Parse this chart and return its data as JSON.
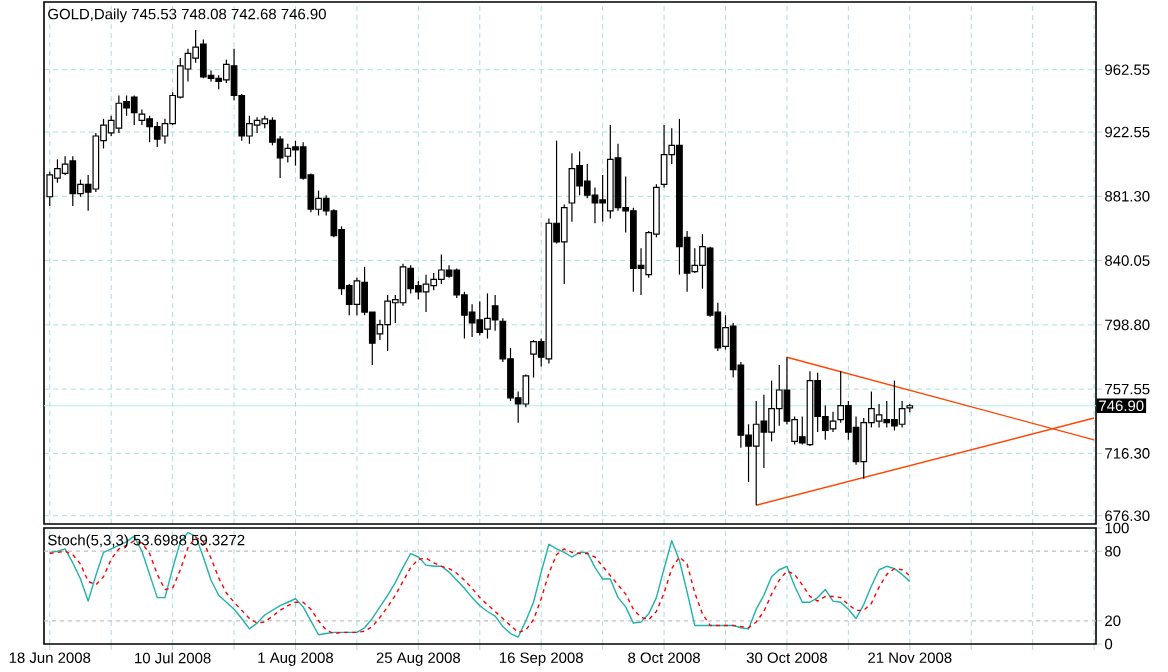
{
  "chart_data": [
    {
      "type": "candlestick",
      "title": "GOLD,Daily  745.53 748.08 742.68 746.90",
      "categories": [
        null,
        null,
        null,
        null,
        null,
        null,
        null,
        null,
        null,
        null,
        null,
        null,
        null,
        null,
        null,
        null,
        null,
        null,
        null,
        null,
        null,
        null,
        null,
        null,
        null,
        null,
        null,
        null,
        null,
        null,
        null,
        null,
        null,
        null,
        null,
        null,
        null,
        null,
        null,
        null,
        null,
        null,
        null,
        null,
        null,
        null,
        null,
        null,
        null,
        null,
        null,
        null,
        null,
        null,
        null,
        null,
        null,
        null,
        null,
        null,
        null,
        null,
        null,
        null,
        null,
        null,
        null,
        null,
        null,
        null,
        null,
        null,
        null,
        null,
        null,
        null,
        null,
        null,
        null,
        null,
        null,
        null,
        null,
        null,
        null,
        null,
        null,
        null,
        null,
        null,
        null,
        null,
        null,
        null,
        null,
        null,
        null,
        null,
        null,
        null,
        null,
        null,
        null,
        null,
        null,
        null,
        null,
        null,
        null,
        null,
        null,
        null,
        null,
        null,
        null,
        null,
        null,
        null,
        null,
        null,
        null,
        null,
        null,
        null,
        null,
        null,
        null,
        null,
        null,
        null,
        null,
        null,
        null,
        null,
        null,
        null,
        null
      ],
      "ohlc": [
        [
          881,
          897,
          875,
          895
        ],
        [
          893,
          905,
          890,
          899
        ],
        [
          896,
          907,
          895,
          902
        ],
        [
          904,
          907,
          875,
          883
        ],
        [
          883,
          892,
          881,
          889
        ],
        [
          889,
          895,
          872,
          884
        ],
        [
          886,
          922,
          884,
          920
        ],
        [
          917,
          931,
          912,
          927
        ],
        [
          922,
          933,
          920,
          930
        ],
        [
          925,
          946,
          922,
          941
        ],
        [
          942,
          946,
          933,
          938
        ],
        [
          945,
          946,
          927,
          935
        ],
        [
          930,
          937,
          927,
          934
        ],
        [
          931,
          933,
          916,
          926
        ],
        [
          926,
          929,
          913,
          918
        ],
        [
          920,
          931,
          915,
          928
        ],
        [
          928,
          948,
          927,
          946
        ],
        [
          945,
          970,
          944,
          965
        ],
        [
          963,
          976,
          955,
          973
        ],
        [
          970,
          988,
          967,
          977
        ],
        [
          979,
          982,
          957,
          958
        ],
        [
          959,
          962,
          955,
          957
        ],
        [
          957,
          959,
          950,
          955
        ],
        [
          956,
          969,
          954,
          966
        ],
        [
          965,
          976,
          943,
          946
        ],
        [
          946,
          947,
          917,
          920
        ],
        [
          920,
          933,
          915,
          928
        ],
        [
          927,
          932,
          922,
          930
        ],
        [
          928,
          933,
          925,
          931
        ],
        [
          930,
          932,
          914,
          916
        ],
        [
          918,
          920,
          893,
          906
        ],
        [
          907,
          915,
          903,
          912
        ],
        [
          913,
          917,
          901,
          911
        ],
        [
          913,
          916,
          892,
          893
        ],
        [
          895,
          896,
          871,
          873
        ],
        [
          873,
          885,
          869,
          880
        ],
        [
          880,
          882,
          869,
          872
        ],
        [
          872,
          873,
          855,
          856
        ],
        [
          860,
          862,
          818,
          822
        ],
        [
          824,
          825,
          805,
          812
        ],
        [
          812,
          829,
          805,
          827
        ],
        [
          826,
          836,
          805,
          807
        ],
        [
          807,
          807,
          773,
          787
        ],
        [
          793,
          802,
          789,
          799
        ],
        [
          799,
          818,
          782,
          814
        ],
        [
          813,
          818,
          800,
          815
        ],
        [
          813,
          838,
          811,
          836
        ],
        [
          835,
          837,
          819,
          822
        ],
        [
          824,
          827,
          815,
          820
        ],
        [
          820,
          831,
          807,
          825
        ],
        [
          824,
          832,
          821,
          828
        ],
        [
          828,
          844,
          825,
          834
        ],
        [
          834,
          837,
          829,
          830
        ],
        [
          834,
          835,
          816,
          818
        ],
        [
          818,
          820,
          790,
          805
        ],
        [
          807,
          812,
          791,
          800
        ],
        [
          802,
          814,
          792,
          794
        ],
        [
          796,
          819,
          790,
          803
        ],
        [
          811,
          818,
          795,
          802
        ],
        [
          801,
          803,
          775,
          777
        ],
        [
          777,
          784,
          750,
          752
        ],
        [
          752,
          756,
          736,
          748
        ],
        [
          748,
          767,
          746,
          766
        ],
        [
          780,
          789,
          765,
          788
        ],
        [
          788,
          790,
          772,
          778
        ],
        [
          777,
          867,
          774,
          864
        ],
        [
          864,
          917,
          851,
          852
        ],
        [
          852,
          876,
          825,
          874
        ],
        [
          877,
          909,
          865,
          899
        ],
        [
          901,
          910,
          882,
          888
        ],
        [
          891,
          902,
          880,
          882
        ],
        [
          882,
          887,
          864,
          877
        ],
        [
          879,
          895,
          865,
          877
        ],
        [
          872,
          927,
          867,
          905
        ],
        [
          906,
          915,
          872,
          874
        ],
        [
          874,
          894,
          858,
          872
        ],
        [
          872,
          874,
          820,
          835
        ],
        [
          837,
          848,
          818,
          835
        ],
        [
          831,
          859,
          829,
          858
        ],
        [
          857,
          889,
          855,
          887
        ],
        [
          889,
          927,
          887,
          908
        ],
        [
          908,
          925,
          902,
          914
        ],
        [
          914,
          931,
          831,
          849
        ],
        [
          855,
          859,
          820,
          832
        ],
        [
          833,
          848,
          832,
          837
        ],
        [
          837,
          857,
          822,
          849
        ],
        [
          848,
          849,
          804,
          805
        ],
        [
          807,
          813,
          782,
          784
        ],
        [
          785,
          805,
          783,
          797
        ],
        [
          798,
          800,
          765,
          770
        ],
        [
          773,
          775,
          720,
          728
        ],
        [
          728,
          735,
          698,
          721
        ],
        [
          721,
          750,
          683,
          735
        ],
        [
          737,
          754,
          707,
          730
        ],
        [
          730,
          763,
          724,
          745
        ],
        [
          745,
          773,
          734,
          757
        ],
        [
          757,
          778,
          735,
          737
        ],
        [
          724,
          740,
          722,
          738
        ],
        [
          727,
          740,
          722,
          723
        ],
        [
          722,
          769,
          721,
          763
        ],
        [
          763,
          768,
          730,
          740
        ],
        [
          740,
          747,
          725,
          731
        ],
        [
          732,
          743,
          730,
          737
        ],
        [
          738,
          769,
          736,
          747
        ],
        [
          747,
          750,
          725,
          730
        ],
        [
          733,
          740,
          709,
          711
        ],
        [
          711,
          739,
          700,
          736
        ],
        [
          736,
          756,
          733,
          745
        ],
        [
          737,
          748,
          733,
          741
        ],
        [
          738,
          750,
          733,
          736
        ],
        [
          738,
          763,
          731,
          734
        ],
        [
          735,
          750,
          733,
          745
        ],
        [
          745.53,
          748.08,
          742.68,
          746.9
        ],
        null,
        null,
        null,
        null,
        null,
        null,
        null,
        null,
        null,
        null,
        null,
        null,
        null,
        null,
        null,
        null,
        null,
        null,
        null,
        null,
        null,
        null,
        null,
        null
      ],
      "color": "#000000",
      "series": [
        {
          "type": "line",
          "color": "#ff4500",
          "line_style": "solid",
          "values": [
            null,
            null,
            null,
            null,
            null,
            null,
            null,
            null,
            null,
            null,
            null,
            null,
            null,
            null,
            null,
            null,
            null,
            null,
            null,
            null,
            null,
            null,
            null,
            null,
            null,
            null,
            null,
            null,
            null,
            null,
            null,
            null,
            null,
            null,
            null,
            null,
            null,
            null,
            null,
            null,
            null,
            null,
            null,
            null,
            null,
            null,
            null,
            null,
            null,
            null,
            null,
            null,
            null,
            null,
            null,
            null,
            null,
            null,
            null,
            null,
            null,
            null,
            null,
            null,
            null,
            null,
            null,
            null,
            null,
            null,
            null,
            null,
            null,
            null,
            null,
            null,
            null,
            null,
            null,
            null,
            null,
            null,
            null,
            null,
            null,
            null,
            null,
            null,
            null,
            null,
            null,
            null,
            null,
            null,
            null,
            null,
            778,
            null,
            null,
            null,
            null,
            null,
            null,
            null,
            null,
            null,
            null,
            null,
            null,
            null,
            null,
            null,
            null,
            null,
            null,
            null,
            null,
            null,
            null,
            null,
            null,
            null,
            null,
            null,
            null,
            null,
            null,
            null,
            null,
            null,
            null,
            null,
            null,
            null,
            null,
            null,
            725
          ]
        },
        {
          "type": "line",
          "color": "#ff4500",
          "line_style": "solid",
          "values": [
            null,
            null,
            null,
            null,
            null,
            null,
            null,
            null,
            null,
            null,
            null,
            null,
            null,
            null,
            null,
            null,
            null,
            null,
            null,
            null,
            null,
            null,
            null,
            null,
            null,
            null,
            null,
            null,
            null,
            null,
            null,
            null,
            null,
            null,
            null,
            null,
            null,
            null,
            null,
            null,
            null,
            null,
            null,
            null,
            null,
            null,
            null,
            null,
            null,
            null,
            null,
            null,
            null,
            null,
            null,
            null,
            null,
            null,
            null,
            null,
            null,
            null,
            null,
            null,
            null,
            null,
            null,
            null,
            null,
            null,
            null,
            null,
            null,
            null,
            null,
            null,
            null,
            null,
            null,
            null,
            null,
            null,
            null,
            null,
            null,
            null,
            null,
            null,
            null,
            null,
            null,
            null,
            683,
            null,
            null,
            null,
            null,
            null,
            null,
            null,
            null,
            null,
            null,
            null,
            null,
            null,
            null,
            null,
            null,
            null,
            null,
            null,
            null,
            null,
            null,
            null,
            null,
            null,
            null,
            null,
            null,
            null,
            null,
            null,
            null,
            null,
            null,
            null,
            null,
            null,
            null,
            null,
            null,
            null,
            null,
            null,
            739
          ]
        }
      ],
      "ylim": [
        671,
        1006
      ],
      "yticks": [
        962.55,
        922.55,
        {
          "value": 881.3,
          "label": "881.30"
        },
        840.05,
        {
          "value": 798.8,
          "label": "798.80"
        },
        757.55,
        {
          "value": 716.3,
          "label": "716.30"
        },
        {
          "value": 676.3,
          "label": "676.30"
        }
      ],
      "ref_lines": [
        {
          "axis": "y",
          "value": 746.9,
          "label": "746.90",
          "color": "#b0f0f0",
          "line_style": "solid"
        }
      ],
      "grid": true,
      "tick_labels": "y"
    },
    {
      "type": "line",
      "title": "Stoch(5,3,3) 53.6988 59.3272",
      "categories": [
        "18 Jun 2008",
        null,
        null,
        null,
        null,
        null,
        null,
        null,
        null,
        null,
        null,
        null,
        null,
        null,
        null,
        null,
        "10 Jul 2008",
        null,
        null,
        null,
        null,
        null,
        null,
        null,
        null,
        null,
        null,
        null,
        null,
        null,
        null,
        null,
        "1 Aug 2008",
        null,
        null,
        null,
        null,
        null,
        null,
        null,
        null,
        null,
        null,
        null,
        null,
        null,
        null,
        null,
        "25 Aug 2008",
        null,
        null,
        null,
        null,
        null,
        null,
        null,
        null,
        null,
        null,
        null,
        null,
        null,
        null,
        null,
        "16 Sep 2008",
        null,
        null,
        null,
        null,
        null,
        null,
        null,
        null,
        null,
        null,
        null,
        null,
        null,
        null,
        null,
        "8 Oct 2008",
        null,
        null,
        null,
        null,
        null,
        null,
        null,
        null,
        null,
        null,
        null,
        null,
        null,
        null,
        null,
        "30 Oct 2008",
        null,
        null,
        null,
        null,
        null,
        null,
        null,
        null,
        null,
        null,
        null,
        null,
        null,
        null,
        null,
        "21 Nov 2008",
        null,
        null,
        null,
        null,
        null,
        null,
        null,
        null,
        null,
        null,
        null,
        null,
        null,
        null,
        null,
        null,
        null,
        null,
        null,
        null,
        null,
        null,
        null,
        null
      ],
      "series": [
        {
          "color": "#20b2aa",
          "line_style": "solid",
          "values": [
            79,
            80,
            82,
            70,
            56,
            37,
            59,
            79,
            82,
            85,
            88,
            93,
            80,
            60,
            40,
            40,
            65,
            88,
            96,
            93,
            75,
            55,
            42,
            36,
            30,
            22,
            13,
            18,
            25,
            29,
            33,
            36,
            39,
            32,
            20,
            8,
            9,
            10,
            10,
            10,
            10,
            14,
            22,
            32,
            42,
            53,
            66,
            78,
            75,
            68,
            67,
            67,
            62,
            55,
            48,
            40,
            33,
            28,
            24,
            15,
            9,
            6,
            20,
            36,
            62,
            86,
            82,
            79,
            75,
            79,
            79,
            66,
            56,
            56,
            40,
            32,
            18,
            19,
            26,
            40,
            65,
            89,
            72,
            45,
            16,
            16,
            16,
            16,
            16,
            16,
            14,
            13,
            30,
            42,
            58,
            64,
            67,
            50,
            36,
            36,
            40,
            47,
            37,
            36,
            30,
            22,
            34,
            50,
            64,
            67,
            65,
            60,
            54,
            null,
            null,
            null,
            null,
            null,
            null,
            null,
            null,
            null,
            null,
            null,
            null,
            null,
            null,
            null,
            null,
            null,
            null,
            null,
            null,
            null,
            null,
            null,
            null
          ]
        },
        {
          "color": "#ff0000",
          "line_style": "dashed",
          "values": [
            78,
            79,
            80,
            77,
            69,
            54,
            51,
            58,
            73,
            82,
            85,
            89,
            87,
            78,
            60,
            47,
            48,
            64,
            83,
            92,
            88,
            74,
            57,
            44,
            36,
            29,
            22,
            18,
            19,
            24,
            29,
            33,
            36,
            36,
            30,
            20,
            12,
            9,
            10,
            10,
            10,
            11,
            15,
            23,
            32,
            42,
            54,
            66,
            73,
            74,
            70,
            67,
            65,
            61,
            55,
            48,
            40,
            34,
            28,
            22,
            16,
            10,
            12,
            21,
            39,
            61,
            77,
            82,
            79,
            78,
            78,
            75,
            67,
            59,
            51,
            43,
            30,
            23,
            21,
            28,
            44,
            65,
            75,
            69,
            44,
            26,
            16,
            16,
            16,
            16,
            15,
            14,
            19,
            28,
            43,
            55,
            63,
            60,
            51,
            41,
            37,
            41,
            41,
            40,
            34,
            29,
            29,
            35,
            49,
            60,
            65,
            64,
            59,
            null,
            null,
            null,
            null,
            null,
            null,
            null,
            null,
            null,
            null,
            null,
            null,
            null,
            null,
            null,
            null,
            null,
            null,
            null,
            null,
            null,
            null,
            null,
            null
          ]
        }
      ],
      "ylim": [
        0,
        100
      ],
      "yticks": [
        100,
        80,
        20,
        0
      ],
      "ref_lines": [
        {
          "axis": "y",
          "value": 80,
          "color": "#c0c0c0",
          "line_style": "dashed"
        },
        {
          "axis": "y",
          "value": 20,
          "color": "#c0c0c0",
          "line_style": "dashed"
        }
      ],
      "grid": "x"
    }
  ]
}
